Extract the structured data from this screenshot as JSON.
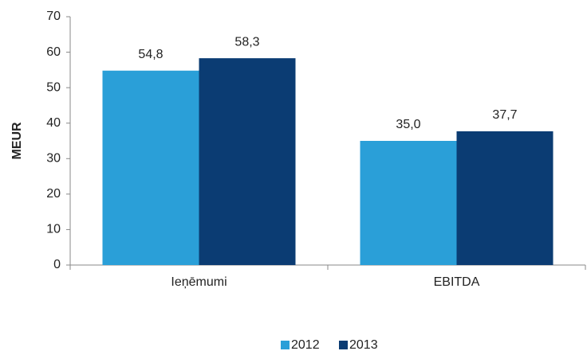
{
  "chart_data": {
    "type": "bar",
    "y_label": "MEUR",
    "categories": [
      "Ieņēmumi",
      "EBITDA"
    ],
    "series": [
      {
        "name": "2012",
        "color": "#2a9fd8",
        "values": [
          54.8,
          35.0
        ],
        "value_labels": [
          "54,8",
          "35,0"
        ]
      },
      {
        "name": "2013",
        "color": "#0b3c73",
        "values": [
          58.3,
          37.7
        ],
        "value_labels": [
          "58,3",
          "37,7"
        ]
      }
    ],
    "ylim": [
      0,
      70
    ],
    "yticks": [
      0,
      10,
      20,
      30,
      40,
      50,
      60,
      70
    ],
    "legend": "bottom"
  }
}
